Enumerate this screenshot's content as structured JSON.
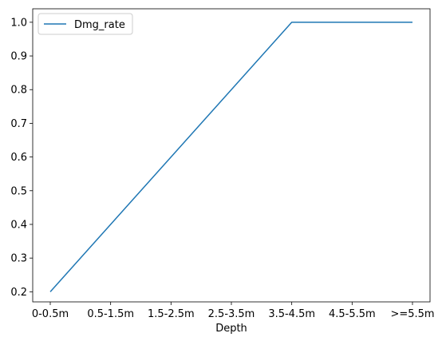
{
  "chart_data": {
    "type": "line",
    "categories": [
      "0-0.5m",
      "0.5-1.5m",
      "1.5-2.5m",
      "2.5-3.5m",
      "3.5-4.5m",
      "4.5-5.5m",
      ">=5.5m"
    ],
    "series": [
      {
        "name": "Dmg_rate",
        "values": [
          0.2,
          0.4,
          0.6,
          0.8,
          1.0,
          1.0,
          1.0
        ],
        "color": "#1f77b4"
      }
    ],
    "title": "",
    "xlabel": "Depth",
    "ylabel": "",
    "ylim": [
      0.17,
      1.04
    ],
    "yticks": [
      0.2,
      0.3,
      0.4,
      0.5,
      0.6,
      0.7,
      0.8,
      0.9,
      1.0
    ],
    "ytick_labels": [
      "0.2",
      "0.3",
      "0.4",
      "0.5",
      "0.6",
      "0.7",
      "0.8",
      "0.9",
      "1.0"
    ],
    "grid": false,
    "legend": {
      "position": "upper left",
      "entries": [
        "Dmg_rate"
      ]
    }
  }
}
